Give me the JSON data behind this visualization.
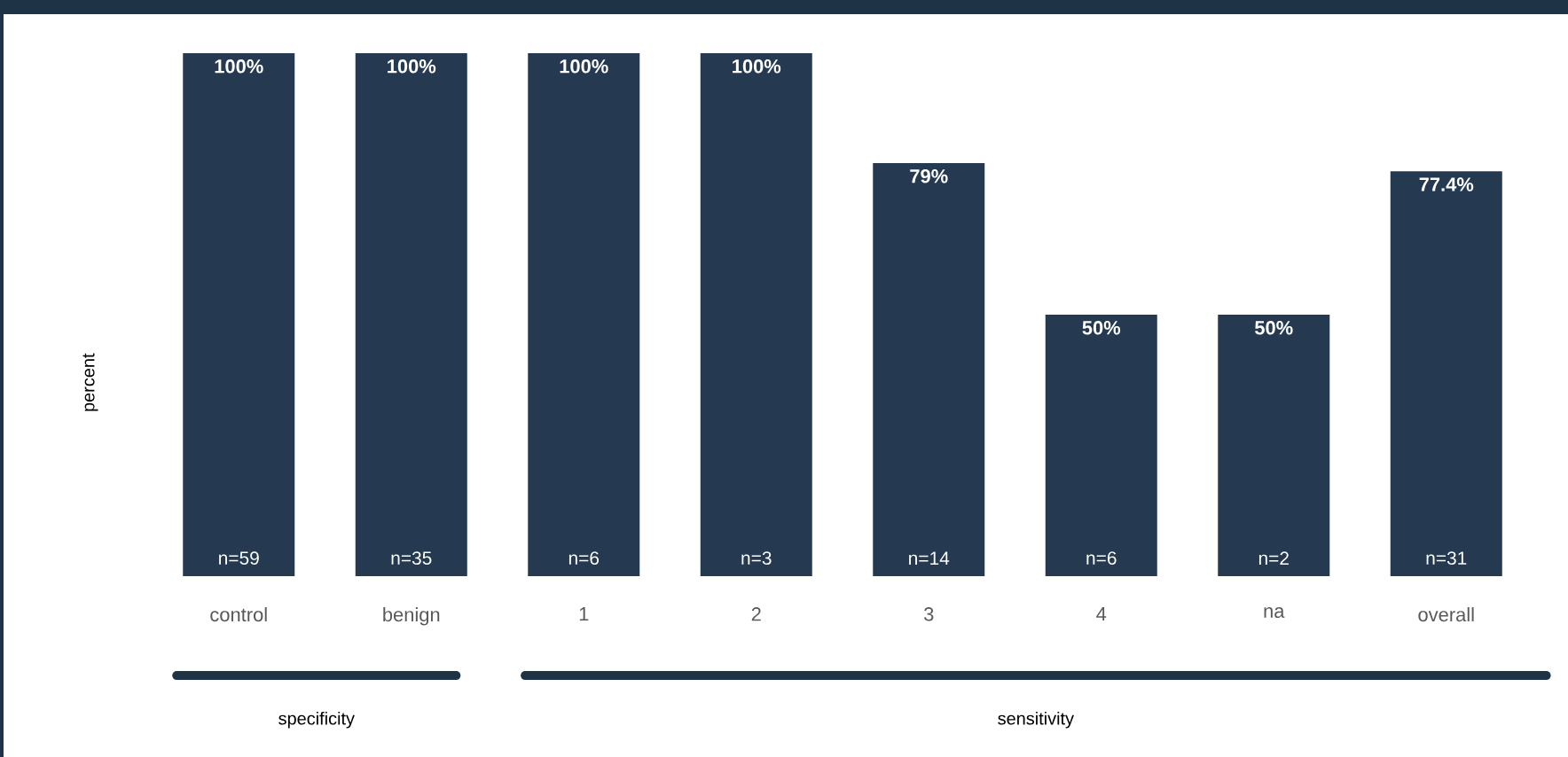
{
  "chart_data": {
    "type": "bar",
    "ylabel": "percent",
    "categories": [
      "control",
      "benign",
      "1",
      "2",
      "3",
      "4",
      "na",
      "overall"
    ],
    "values": [
      100,
      100,
      100,
      100,
      79,
      50,
      50,
      77.4
    ],
    "value_labels": [
      "100%",
      "100%",
      "100%",
      "100%",
      "79%",
      "50%",
      "50%",
      "77.4%"
    ],
    "color": "#253a50",
    "ylim": [
      0,
      100
    ],
    "tick_labels": "x",
    "annotations": [
      {
        "text": "n=59",
        "x": "control",
        "y": 0
      },
      {
        "text": "n=35",
        "x": "benign",
        "y": 0
      },
      {
        "text": "n=6",
        "x": "1",
        "y": 0
      },
      {
        "text": "n=3",
        "x": "2",
        "y": 0
      },
      {
        "text": "n=14",
        "x": "3",
        "y": 0
      },
      {
        "text": "n=6",
        "x": "4",
        "y": 0
      },
      {
        "text": "n=2",
        "x": "na",
        "y": 0
      },
      {
        "text": "n=31",
        "x": "overall",
        "y": 0
      },
      "specificity",
      "sensitivity"
    ]
  }
}
